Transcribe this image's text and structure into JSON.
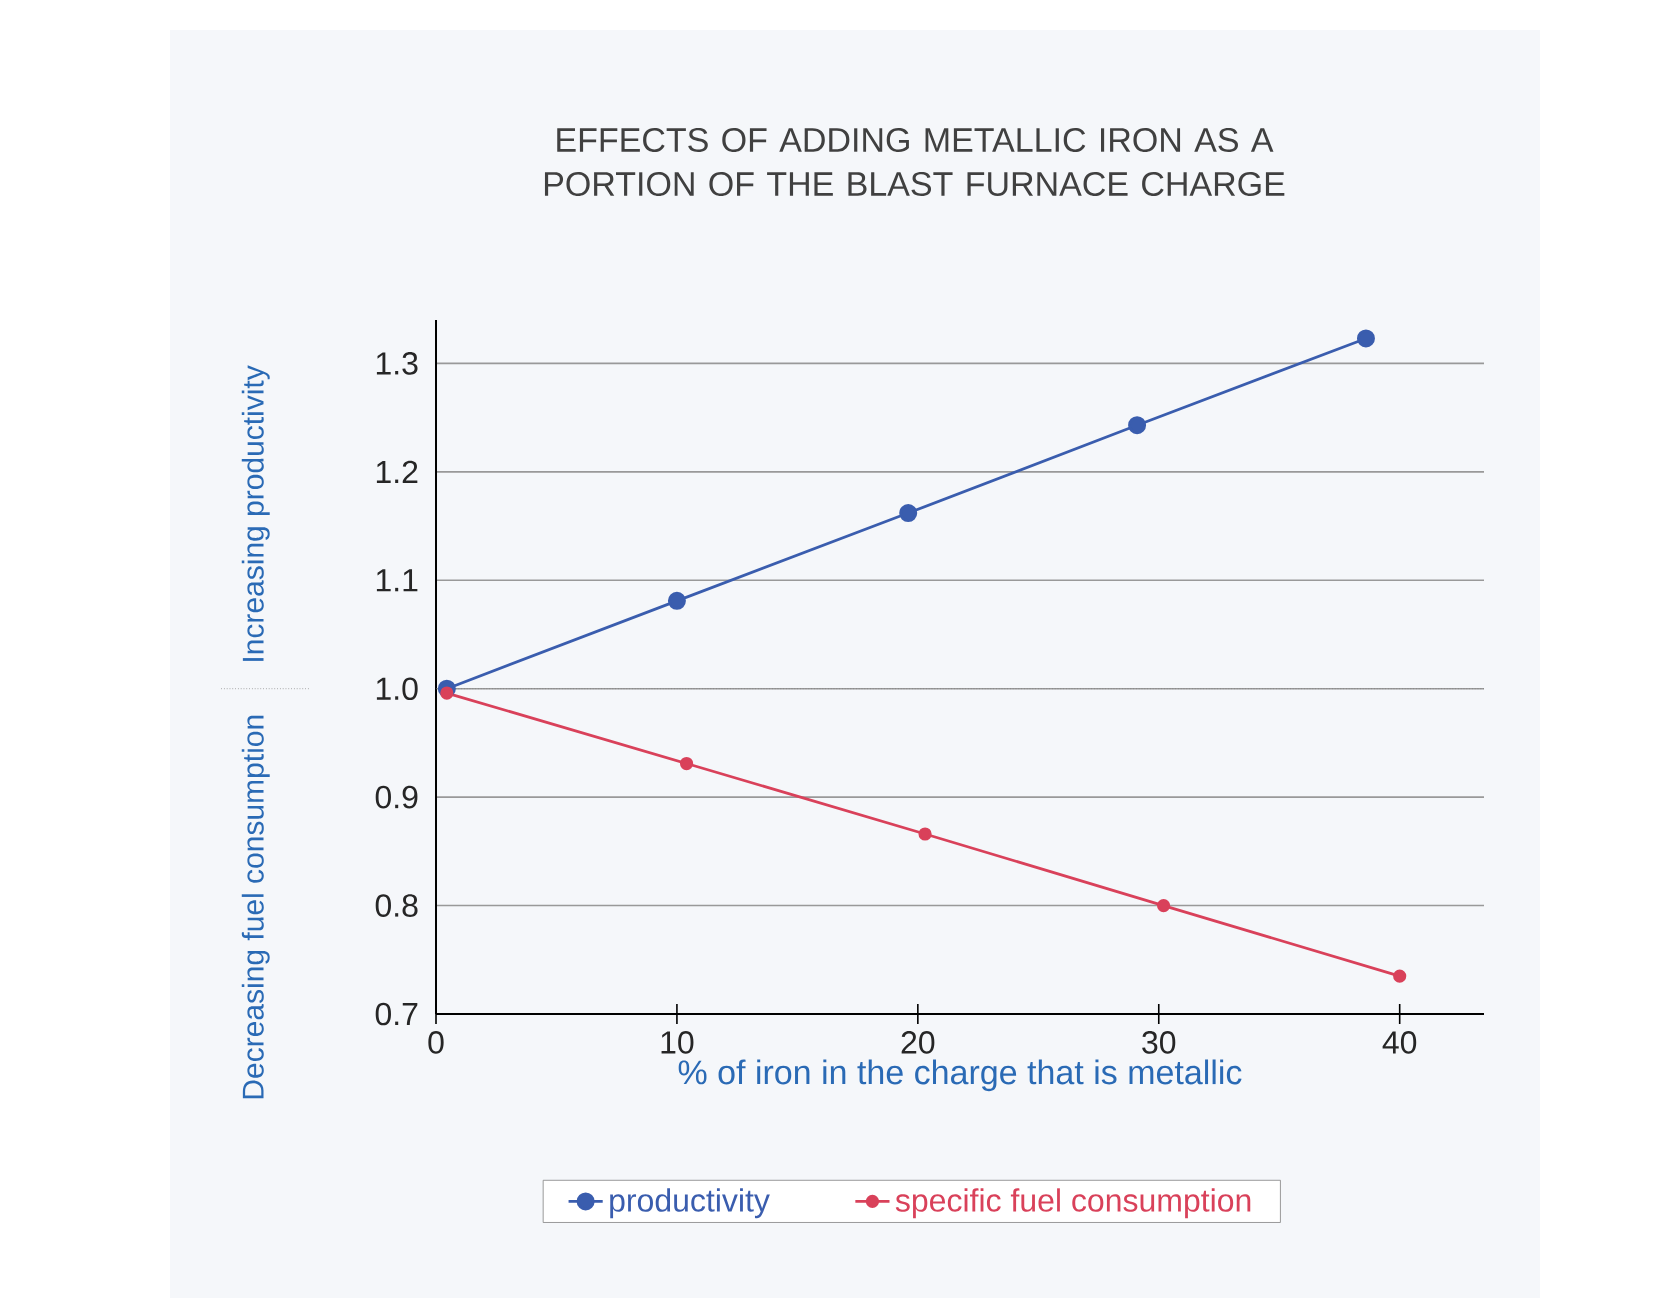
{
  "chart_data": {
    "type": "line",
    "title": "EFFECTS OF ADDING METALLIC IRON AS A\nPORTION OF THE BLAST   FURNACE CHARGE",
    "xlabel": "% of iron in the charge that is metallic",
    "ylabel": "Increasing productivity",
    "annotations": [
      "Decreasing fuel consumption"
    ],
    "xlim": [
      0,
      43.5
    ],
    "xticks": [
      0,
      10,
      20,
      30,
      40
    ],
    "ylim": [
      0.7,
      1.34
    ],
    "yticks": [
      0.7,
      0.8,
      0.9,
      {
        "value": 1,
        "label": "1.0"
      },
      1.1,
      1.2,
      1.3
    ],
    "series": [
      {
        "name": "productivity",
        "color": "#3a5dae",
        "x": [
          0.45,
          10,
          19.6,
          29.1,
          38.6
        ],
        "values": [
          1.0,
          1.081,
          1.162,
          1.243,
          1.323
        ]
      },
      {
        "name": "specific fuel consumption",
        "color": "#d9415a",
        "x": [
          0.45,
          10.4,
          20.3,
          30.2,
          40
        ],
        "values": [
          0.996,
          0.931,
          0.866,
          0.8,
          0.735
        ]
      }
    ],
    "ref_lines": [
      {
        "axis": "y",
        "value": 1.0,
        "label": null,
        "line_style": "dotted"
      }
    ],
    "grid": "y",
    "legend": "bottom",
    "marker": "circle",
    "line_style": "solid"
  }
}
